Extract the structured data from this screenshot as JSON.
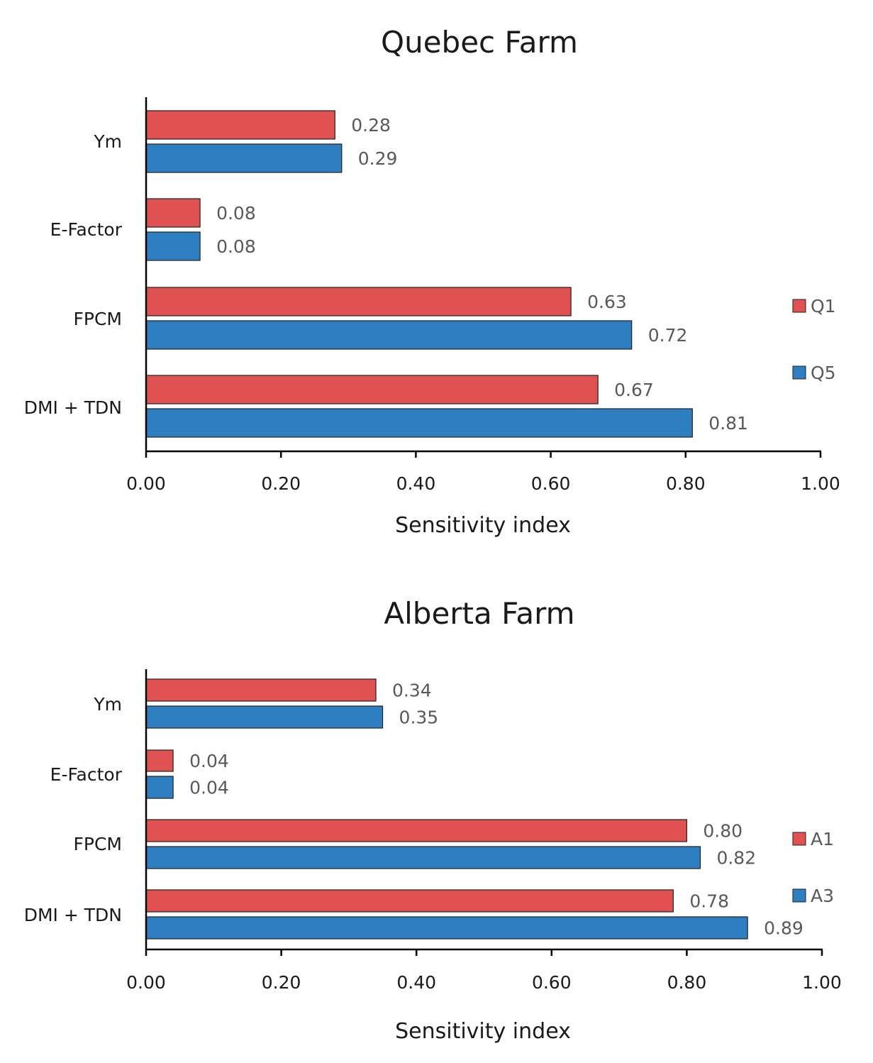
{
  "colors": {
    "series_a": "#e05252",
    "series_b": "#2e7ec2",
    "axis": "#000000",
    "label": "#595959"
  },
  "chart_data": [
    {
      "type": "bar",
      "orientation": "horizontal",
      "title": "Quebec Farm",
      "xlabel": "Sensitivity index",
      "ylabel": "",
      "xlim": [
        0,
        1
      ],
      "xticks": [
        "0.00",
        "0.20",
        "0.40",
        "0.60",
        "0.80",
        "1.00"
      ],
      "categories": [
        "Ym",
        "E-Factor",
        "FPCM",
        "DMI + TDN"
      ],
      "series": [
        {
          "name": "Q1",
          "values": [
            0.28,
            0.08,
            0.63,
            0.67
          ],
          "labels": [
            "0.28",
            "0.08",
            "0.63",
            "0.67"
          ]
        },
        {
          "name": "Q5",
          "values": [
            0.29,
            0.08,
            0.72,
            0.81
          ],
          "labels": [
            "0.29",
            "0.08",
            "0.72",
            "0.81"
          ]
        }
      ],
      "legend": "right"
    },
    {
      "type": "bar",
      "orientation": "horizontal",
      "title": "Alberta Farm",
      "xlabel": "Sensitivity index",
      "ylabel": "",
      "xlim": [
        0,
        1
      ],
      "xticks": [
        "0.00",
        "0.20",
        "0.40",
        "0.60",
        "0.80",
        "1.00"
      ],
      "categories": [
        "Ym",
        "E-Factor",
        "FPCM",
        "DMI + TDN"
      ],
      "series": [
        {
          "name": "A1",
          "values": [
            0.34,
            0.04,
            0.8,
            0.78
          ],
          "labels": [
            "0.34",
            "0.04",
            "0.80",
            "0.78"
          ]
        },
        {
          "name": "A3",
          "values": [
            0.35,
            0.04,
            0.82,
            0.89
          ],
          "labels": [
            "0.35",
            "0.04",
            "0.82",
            "0.89"
          ]
        }
      ],
      "legend": "right"
    }
  ]
}
